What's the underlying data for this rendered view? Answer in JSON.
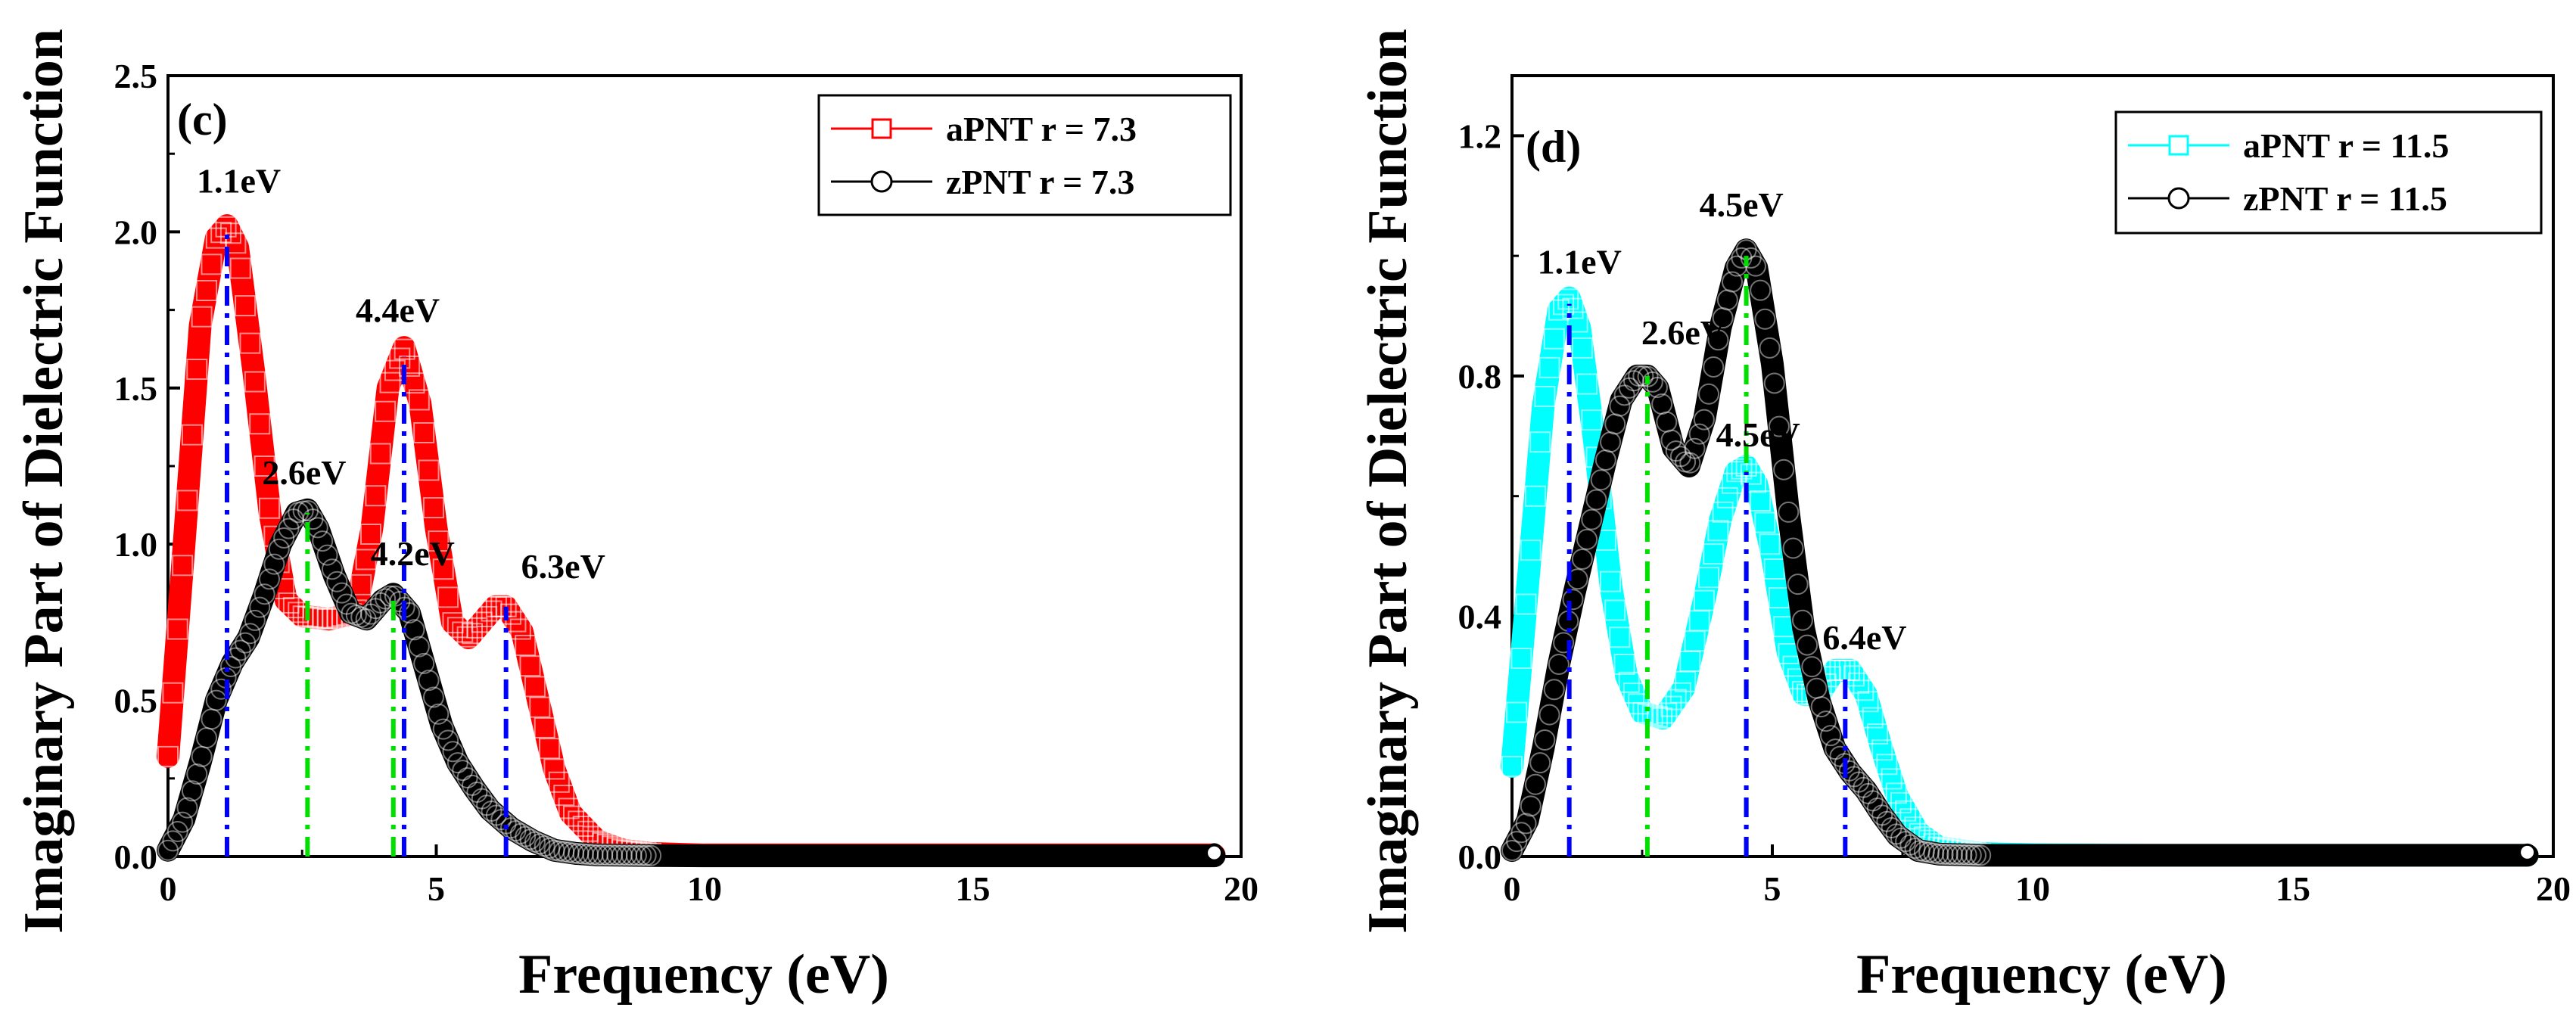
{
  "chart_data": [
    {
      "type": "line",
      "panel_label": "(c)",
      "xlabel": "Frequency (eV)",
      "ylabel": "Imaginary  Part of Dielectric Function",
      "xlim": [
        0,
        20
      ],
      "ylim": [
        0,
        2.5
      ],
      "xticks": [
        0,
        5,
        10,
        15,
        20
      ],
      "yticks": [
        0.0,
        0.5,
        1.0,
        1.5,
        2.0,
        2.5
      ],
      "xtick_labels": [
        "0",
        "5",
        "10",
        "15",
        "20"
      ],
      "ytick_labels": [
        "0.0",
        "0.5",
        "1.0",
        "1.5",
        "2.0",
        "2.5"
      ],
      "legend_position": "top-right",
      "series": [
        {
          "name": "aPNT r = 7.3",
          "color": "#ff0000",
          "marker": "square",
          "x": [
            0.0,
            0.3,
            0.6,
            0.9,
            1.1,
            1.3,
            1.6,
            1.9,
            2.2,
            2.5,
            3.0,
            3.5,
            3.8,
            4.1,
            4.4,
            4.7,
            5.0,
            5.3,
            5.6,
            5.9,
            6.1,
            6.3,
            6.6,
            6.9,
            7.2,
            7.5,
            8.0,
            8.5,
            9.0,
            10.0,
            12.0,
            15.0,
            19.5
          ],
          "y": [
            0.32,
            1.0,
            1.7,
            1.98,
            2.02,
            1.95,
            1.55,
            1.1,
            0.82,
            0.77,
            0.76,
            0.78,
            1.05,
            1.5,
            1.63,
            1.45,
            1.05,
            0.75,
            0.7,
            0.76,
            0.8,
            0.8,
            0.72,
            0.5,
            0.28,
            0.14,
            0.05,
            0.02,
            0.01,
            0.005,
            0.005,
            0.005,
            0.005
          ]
        },
        {
          "name": "zPNT r = 7.3",
          "color": "#000000",
          "marker": "circle",
          "x": [
            0.0,
            0.3,
            0.6,
            0.9,
            1.2,
            1.5,
            1.8,
            2.1,
            2.4,
            2.6,
            2.8,
            3.1,
            3.4,
            3.7,
            4.0,
            4.2,
            4.5,
            4.8,
            5.1,
            5.4,
            5.7,
            6.0,
            6.4,
            6.8,
            7.2,
            7.6,
            8.0,
            9.0,
            10.0,
            12.0,
            15.0,
            19.5
          ],
          "y": [
            0.02,
            0.12,
            0.3,
            0.5,
            0.62,
            0.7,
            0.84,
            1.0,
            1.1,
            1.11,
            1.05,
            0.9,
            0.78,
            0.76,
            0.82,
            0.84,
            0.78,
            0.6,
            0.42,
            0.3,
            0.22,
            0.15,
            0.09,
            0.05,
            0.02,
            0.01,
            0.005,
            0.003,
            0.002,
            0.002,
            0.002,
            0.002
          ]
        }
      ],
      "annotations": [
        {
          "text": "1.1eV",
          "x": 1.1,
          "y": 2.0,
          "line_color": "#0000ff"
        },
        {
          "text": "2.6eV",
          "x": 2.6,
          "y": 1.1,
          "line_color": "#00e000"
        },
        {
          "text": "4.4eV",
          "x": 4.4,
          "y": 1.6,
          "line_color": "#0000ff"
        },
        {
          "text": "4.2eV",
          "x": 4.2,
          "y": 0.84,
          "line_color": "#00e000"
        },
        {
          "text": "6.3eV",
          "x": 6.3,
          "y": 0.8,
          "line_color": "#0000ff"
        }
      ]
    },
    {
      "type": "line",
      "panel_label": "(d)",
      "xlabel": "Frequency (eV)",
      "ylabel": "Imaginary  Part of Dielectric Function",
      "xlim": [
        0,
        20
      ],
      "ylim": [
        0,
        1.3
      ],
      "xticks": [
        0,
        5,
        10,
        15,
        20
      ],
      "yticks": [
        0.0,
        0.4,
        0.8,
        1.2
      ],
      "xtick_labels": [
        "0",
        "5",
        "10",
        "15",
        "20"
      ],
      "ytick_labels": [
        "0.0",
        "0.4",
        "0.8",
        "1.2"
      ],
      "legend_position": "top-right",
      "series": [
        {
          "name": "aPNT r = 11.5",
          "color": "#00ffff",
          "marker": "square",
          "x": [
            0.0,
            0.3,
            0.6,
            0.9,
            1.1,
            1.3,
            1.6,
            1.9,
            2.2,
            2.5,
            2.9,
            3.3,
            3.7,
            4.0,
            4.3,
            4.5,
            4.7,
            5.0,
            5.3,
            5.6,
            5.9,
            6.2,
            6.5,
            6.8,
            7.1,
            7.4,
            7.8,
            8.2,
            9.0,
            10.0,
            12.0,
            15.0,
            19.5
          ],
          "y": [
            0.15,
            0.45,
            0.75,
            0.91,
            0.93,
            0.88,
            0.68,
            0.45,
            0.3,
            0.24,
            0.23,
            0.28,
            0.43,
            0.56,
            0.64,
            0.65,
            0.62,
            0.5,
            0.34,
            0.27,
            0.27,
            0.31,
            0.31,
            0.27,
            0.18,
            0.1,
            0.04,
            0.015,
            0.005,
            0.003,
            0.002,
            0.002,
            0.002
          ]
        },
        {
          "name": "zPNT r = 11.5",
          "color": "#000000",
          "marker": "circle",
          "x": [
            0.0,
            0.3,
            0.6,
            0.9,
            1.2,
            1.5,
            1.8,
            2.1,
            2.4,
            2.6,
            2.8,
            3.1,
            3.4,
            3.7,
            4.0,
            4.3,
            4.5,
            4.7,
            5.0,
            5.3,
            5.6,
            5.9,
            6.2,
            6.5,
            6.8,
            7.1,
            7.4,
            7.8,
            8.2,
            9.0,
            10.0,
            12.0,
            15.0,
            19.5
          ],
          "y": [
            0.01,
            0.06,
            0.18,
            0.32,
            0.44,
            0.55,
            0.66,
            0.76,
            0.8,
            0.8,
            0.78,
            0.68,
            0.65,
            0.73,
            0.88,
            0.98,
            1.01,
            0.98,
            0.82,
            0.58,
            0.38,
            0.26,
            0.18,
            0.14,
            0.11,
            0.07,
            0.035,
            0.01,
            0.004,
            0.002,
            0.002,
            0.002,
            0.002,
            0.002
          ]
        }
      ],
      "annotations": [
        {
          "text": "1.1eV",
          "x": 1.1,
          "y": 0.92,
          "line_color": "#0000ff"
        },
        {
          "text": "2.6eV",
          "x": 2.6,
          "y": 0.8,
          "line_color": "#00e000"
        },
        {
          "text": "4.5eV",
          "x": 4.5,
          "y": 1.0,
          "line_color": "#00e000"
        },
        {
          "text": "4.5eV",
          "x": 4.5,
          "y": 0.64,
          "line_color": "#0000ff"
        },
        {
          "text": "6.4eV",
          "x": 6.4,
          "y": 0.3,
          "line_color": "#0000ff"
        }
      ]
    }
  ]
}
